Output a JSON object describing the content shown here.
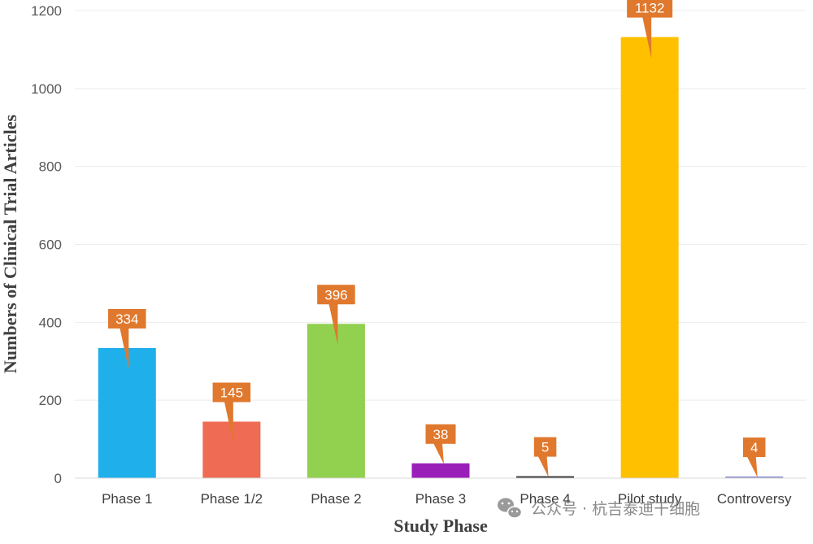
{
  "chart_data": {
    "type": "bar",
    "title": "",
    "xlabel": "Study Phase",
    "ylabel": "Numbers of Clinical Trial Articles",
    "categories": [
      "Phase 1",
      "Phase 1/2",
      "Phase 2",
      "Phase 3",
      "Phase 4",
      "Pilot study",
      "Controversy"
    ],
    "values": [
      334,
      145,
      396,
      38,
      5,
      1132,
      4
    ],
    "bar_colors": [
      "#1fb0ec",
      "#ef6b53",
      "#92d050",
      "#9a1fb8",
      "#3a3a3a",
      "#ffc000",
      "#8a8fc8"
    ],
    "label_color": "#e0782d",
    "ylim": [
      0,
      1200
    ],
    "yticks": [
      0,
      200,
      400,
      600,
      800,
      1000,
      1200
    ],
    "grid": true,
    "legend": "none"
  },
  "watermark": {
    "icon": "wechat-icon",
    "text": "公众号 · 杭吉泰迪干细胞"
  }
}
